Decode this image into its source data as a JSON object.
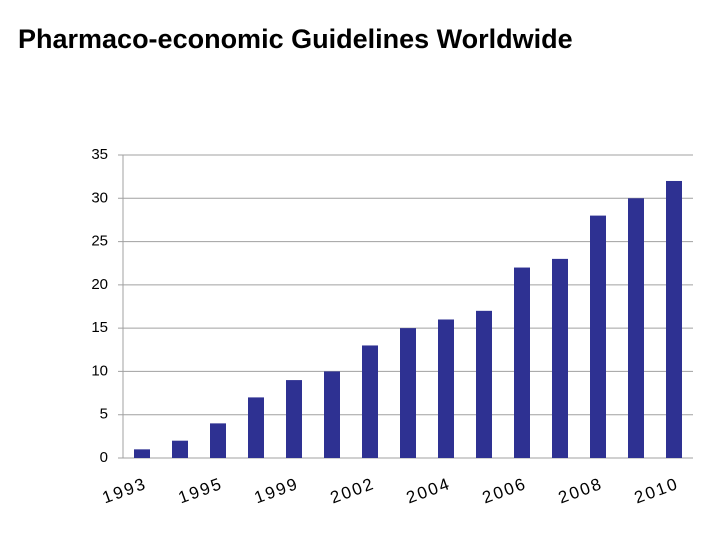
{
  "chart_data": {
    "type": "bar",
    "title": "Pharmaco-economic Guidelines Worldwide",
    "categories": [
      "1993",
      null,
      "1995",
      null,
      "1999",
      null,
      "2002",
      null,
      "2004",
      null,
      "2006",
      null,
      "2008",
      null,
      "2010"
    ],
    "values": [
      1,
      2,
      4,
      7,
      9,
      10,
      13,
      15,
      16,
      17,
      22,
      23,
      28,
      30,
      32
    ],
    "color": "#2e3192",
    "ylim": [
      0,
      35
    ],
    "yticks": [
      0,
      5,
      10,
      15,
      20,
      25,
      30,
      35
    ],
    "grid": true
  }
}
